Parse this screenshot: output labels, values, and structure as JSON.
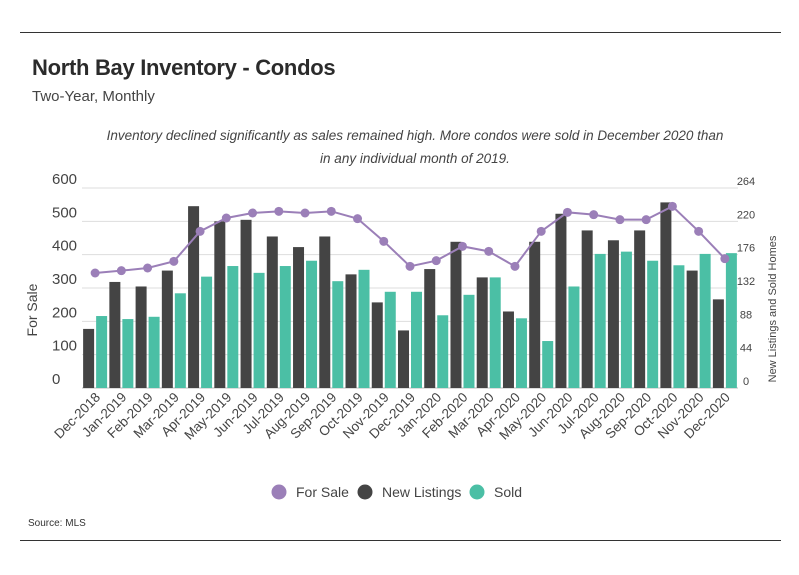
{
  "header": {
    "title": "North Bay Inventory - Condos",
    "subtitle": "Two-Year, Monthly",
    "annotation": "Inventory declined significantly as sales remained high. More condos were sold in December 2020 than in any individual month of 2019."
  },
  "footer": {
    "source": "Source:  MLS"
  },
  "colors": {
    "for_sale": "#9b7fb8",
    "new_listings": "#444444",
    "sold": "#4bbfa5",
    "grid": "#dddddd"
  },
  "chart_data": {
    "type": "bar",
    "ylabel": "For Sale",
    "y2label": "New Listings and Sold Homes",
    "ylim": [
      0,
      600
    ],
    "y_ticks": [
      "0",
      "100",
      "200",
      "300",
      "400",
      "500",
      "600"
    ],
    "y2lim": [
      0,
      264
    ],
    "y2_ticks": [
      "0",
      "44",
      "88",
      "132",
      "176",
      "220",
      "264"
    ],
    "legend_position": "bottom",
    "categories": [
      "Dec-2018",
      "Jan-2019",
      "Feb-2019",
      "Mar-2019",
      "Apr-2019",
      "May-2019",
      "Jun-2019",
      "Jul-2019",
      "Aug-2019",
      "Sep-2019",
      "Oct-2019",
      "Nov-2019",
      "Dec-2019",
      "Jan-2020",
      "Feb-2020",
      "Mar-2020",
      "Apr-2020",
      "May-2020",
      "Jun-2020",
      "Jul-2020",
      "Aug-2020",
      "Sep-2020",
      "Oct-2020",
      "Nov-2020",
      "Dec-2020"
    ],
    "series": [
      {
        "name": "For Sale",
        "type": "line",
        "axis": "left",
        "values": [
          345,
          352,
          360,
          380,
          470,
          510,
          525,
          530,
          525,
          530,
          508,
          440,
          365,
          382,
          425,
          410,
          365,
          470,
          527,
          520,
          505,
          505,
          545,
          470,
          388
        ]
      },
      {
        "name": "New Listings",
        "type": "bar",
        "axis": "right",
        "values": [
          78,
          140,
          134,
          155,
          240,
          220,
          222,
          200,
          186,
          200,
          150,
          113,
          76,
          157,
          193,
          146,
          101,
          193,
          230,
          208,
          195,
          208,
          245,
          155,
          117
        ]
      },
      {
        "name": "Sold",
        "type": "bar",
        "axis": "right",
        "values": [
          95,
          91,
          94,
          125,
          147,
          161,
          152,
          161,
          168,
          141,
          156,
          127,
          127,
          96,
          123,
          146,
          92,
          62,
          134,
          177,
          180,
          168,
          162,
          177,
          178
        ]
      }
    ]
  }
}
